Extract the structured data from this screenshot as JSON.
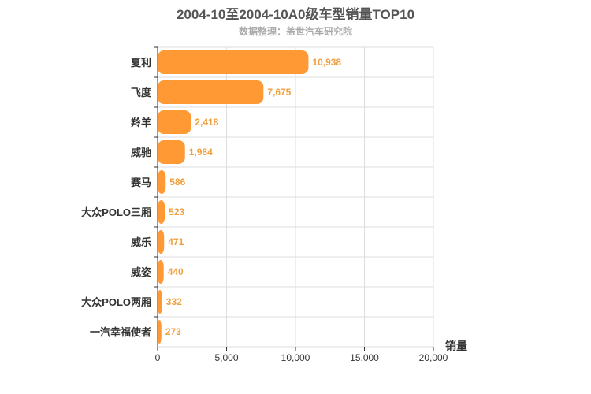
{
  "chart_data": {
    "type": "bar",
    "orientation": "horizontal",
    "title": "2004-10至2004-10A0级车型销量TOP10",
    "subtitle": "数据整理：盖世汽车研究院",
    "categories": [
      "夏利",
      "飞度",
      "羚羊",
      "威驰",
      "赛马",
      "大众POLO三厢",
      "威乐",
      "威姿",
      "大众POLO两厢",
      "一汽幸福使者"
    ],
    "values": [
      10938,
      7675,
      2418,
      1984,
      586,
      523,
      471,
      440,
      332,
      273
    ],
    "value_labels": [
      "10,938",
      "7,675",
      "2,418",
      "1,984",
      "586",
      "523",
      "471",
      "440",
      "332",
      "273"
    ],
    "xlabel": "销量",
    "xlim": [
      0,
      20000
    ],
    "xticks": [
      0,
      5000,
      10000,
      15000,
      20000
    ],
    "xtick_labels": [
      "0",
      "5,000",
      "10,000",
      "15,000",
      "20,000"
    ],
    "grid": true,
    "bar_color": "#ff9933"
  }
}
